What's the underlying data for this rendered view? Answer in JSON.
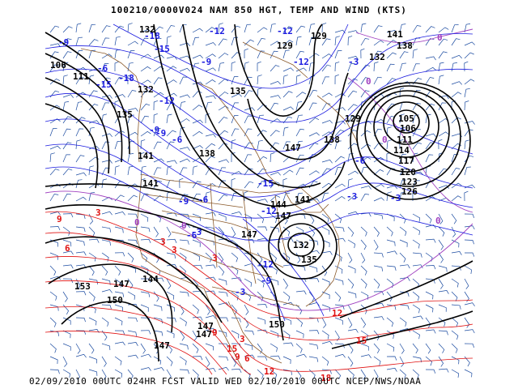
{
  "title": "100210/0000V024 NAM 850 HGT, TEMP AND WIND (KTS)",
  "footer": "02/09/2010 00UTC 024HR FCST VALID WED 02/10/2010 00UTC  NCEP/NWS/NOAA",
  "colors": {
    "height": "#000000",
    "temp_cold": "#1c1ce0",
    "temp_zero": "#a040c0",
    "temp_warm": "#e01010",
    "wind": "#1a4aa0",
    "borders": "#8b5a2b"
  },
  "height_labels": [
    "132",
    "138",
    "141",
    "111",
    "129",
    "105",
    "106",
    "111",
    "114",
    "117",
    "120",
    "123",
    "126",
    "135",
    "138",
    "147",
    "147",
    "147",
    "141",
    "144",
    "147",
    "150",
    "150",
    "153",
    "147",
    "147",
    "144",
    "147",
    "141",
    "138",
    "135",
    "132",
    "135",
    "141",
    "129",
    "129",
    "132",
    "106",
    "132"
  ],
  "temp_labels_cold": [
    "-18",
    "-15",
    "-12",
    "-9",
    "-6",
    "-3",
    "-18",
    "-15",
    "-12",
    "-12",
    "-9",
    "-6",
    "-3",
    "-15",
    "-12",
    "-9",
    "-6",
    "-3",
    "-3",
    "-9",
    "-6",
    "-12",
    "-9",
    "-6",
    "-3",
    "-12",
    "-9"
  ],
  "temp_labels_zero": [
    "0",
    "0",
    "0",
    "0",
    "0",
    "0"
  ],
  "temp_labels_warm": [
    "3",
    "3",
    "3",
    "6",
    "9",
    "9",
    "3",
    "12",
    "15",
    "15",
    "18",
    "3",
    "6",
    "9",
    "12"
  ]
}
